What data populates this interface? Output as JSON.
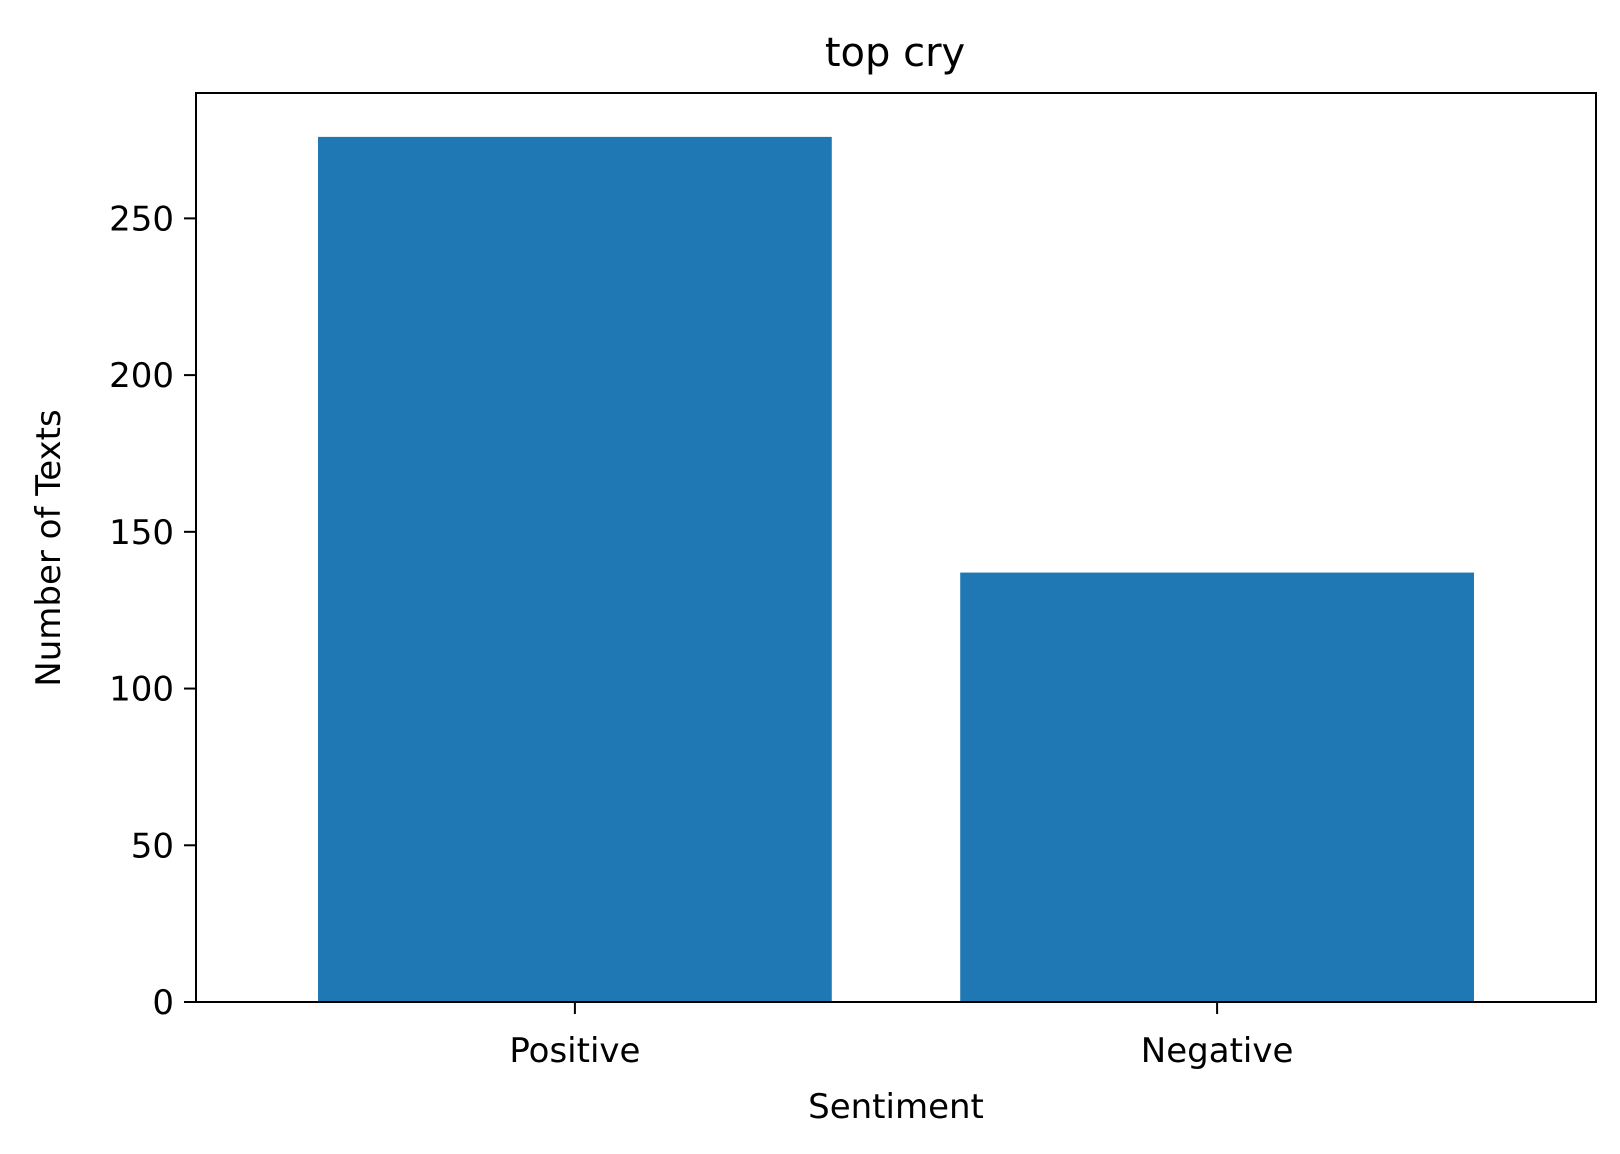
{
  "chart_data": {
    "type": "bar",
    "title": "top cry",
    "xlabel": "Sentiment",
    "ylabel": "Number of Texts",
    "categories": [
      "Positive",
      "Negative"
    ],
    "values": [
      276,
      137
    ],
    "ylim": [
      0,
      290
    ],
    "yticks": [
      0,
      50,
      100,
      150,
      200,
      250
    ],
    "ytick_labels": [
      "0",
      "50",
      "100",
      "150",
      "200",
      "250"
    ],
    "bar_color": "#1f77b4",
    "grid": false,
    "legend": null
  }
}
